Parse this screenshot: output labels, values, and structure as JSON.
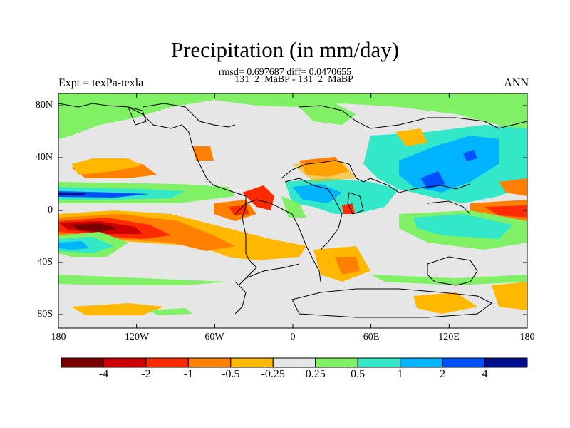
{
  "title": "Precipitation (in mm/day)",
  "subtitle_stats": "rmsd= 0.697687 diff= 0.0470655",
  "subtitle_cases": "131_2_MaBP - 131_2_MaBP",
  "left_label": "Expt = texPa-texla",
  "right_label": "ANN",
  "lat_ticks": [
    "80N",
    "40N",
    "0",
    "40S",
    "80S"
  ],
  "lon_ticks": [
    "180",
    "120W",
    "60W",
    "0",
    "60E",
    "120E",
    "180"
  ],
  "colorbar": {
    "labels": [
      "-4",
      "-2",
      "-1",
      "-0.5",
      "-0.25",
      "0.25",
      "0.5",
      "1",
      "2",
      "4"
    ],
    "colors": [
      "#7a0000",
      "#cc0000",
      "#ff2a00",
      "#ff7f00",
      "#ffb800",
      "#e6e6e6",
      "#80f064",
      "#33e8c8",
      "#00b4ff",
      "#0050ff",
      "#00108c"
    ]
  },
  "map_data": {
    "variable": "Precipitation difference",
    "units": "mm/day",
    "projection": "cylindrical equidistant",
    "lon_range": [
      -180,
      180
    ],
    "lat_range": [
      -90,
      90
    ],
    "background_color": "#e6e6e6"
  }
}
